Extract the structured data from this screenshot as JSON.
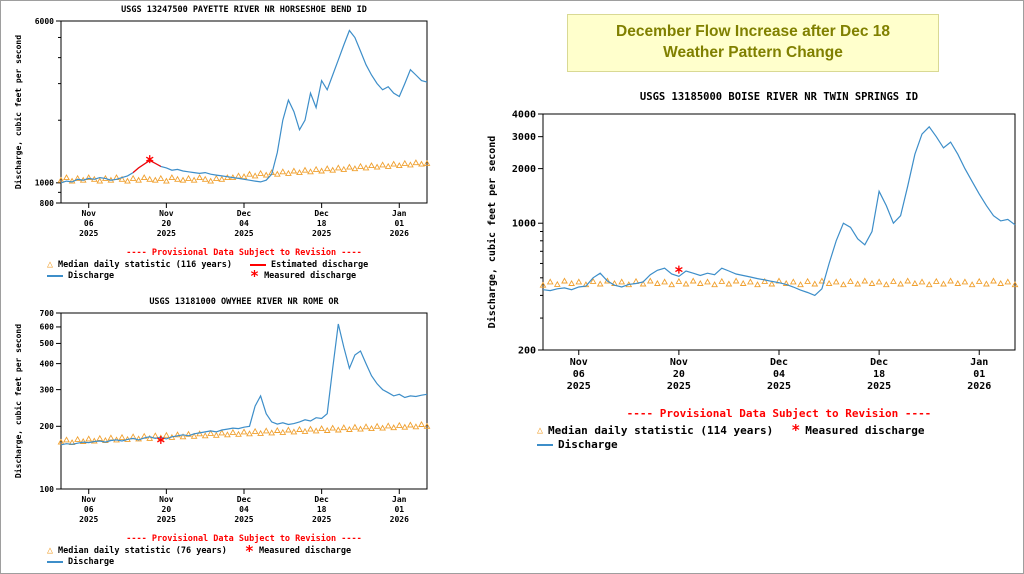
{
  "callout": {
    "line1": "December Flow Increase after Dec 18",
    "line2": "Weather Pattern Change",
    "bg_color": "#ffffcc",
    "text_color": "#808000"
  },
  "chart_data": [
    {
      "type": "line",
      "title": "USGS 13247500 PAYETTE RIVER NR HORSESHOE BEND ID",
      "ylabel": "Discharge, cubic feet per second",
      "yscale": "log",
      "ylim": [
        800,
        6000
      ],
      "yticks": [
        800,
        1000,
        6000
      ],
      "yticks_minor": [
        900,
        2000,
        3000,
        4000,
        5000
      ],
      "x_range": [
        0,
        66
      ],
      "xticks": [
        {
          "x": 5,
          "lines": [
            "Nov",
            "06",
            "2025"
          ]
        },
        {
          "x": 19,
          "lines": [
            "Nov",
            "20",
            "2025"
          ]
        },
        {
          "x": 33,
          "lines": [
            "Dec",
            "04",
            "2025"
          ]
        },
        {
          "x": 47,
          "lines": [
            "Dec",
            "18",
            "2025"
          ]
        },
        {
          "x": 61,
          "lines": [
            "Jan",
            "01",
            "2026"
          ]
        }
      ],
      "provisional": "---- Provisional Data Subject to Revision ----",
      "legend_cols": 2,
      "legend": [
        {
          "marker": "triangle",
          "color": "#f0a02f",
          "label": "Median daily statistic (116 years)"
        },
        {
          "marker": "line",
          "color": "#ff0000",
          "label": "Estimated discharge"
        },
        {
          "marker": "line",
          "color": "#3d8ec9",
          "label": "Discharge"
        },
        {
          "marker": "asterisk",
          "color": "#ff0000",
          "label": "Measured discharge"
        }
      ],
      "layout": {
        "margins": {
          "l": 52,
          "r": 6,
          "t": 6,
          "b": 44
        },
        "font": 8,
        "ylabel_x": 12
      },
      "series": [
        {
          "name": "Median daily statistic (116 years)",
          "style": "triangles",
          "color": "#f0a02f",
          "values": [
            1030,
            1060,
            1020,
            1050,
            1030,
            1060,
            1040,
            1020,
            1050,
            1030,
            1060,
            1040,
            1020,
            1050,
            1030,
            1060,
            1040,
            1030,
            1050,
            1020,
            1060,
            1040,
            1030,
            1050,
            1030,
            1060,
            1040,
            1020,
            1050,
            1040,
            1060,
            1060,
            1080,
            1070,
            1100,
            1080,
            1110,
            1090,
            1120,
            1100,
            1130,
            1110,
            1140,
            1120,
            1150,
            1130,
            1160,
            1140,
            1170,
            1150,
            1180,
            1160,
            1190,
            1170,
            1200,
            1180,
            1210,
            1190,
            1220,
            1200,
            1230,
            1210,
            1240,
            1220,
            1250,
            1230,
            1240
          ]
        },
        {
          "name": "Discharge",
          "style": "line",
          "color": "#3d8ec9",
          "values": [
            1000,
            1020,
            1010,
            1040,
            1030,
            1050,
            1040,
            1060,
            1050,
            1030,
            1040,
            1060,
            1080,
            1120,
            1180,
            1230,
            1280,
            1240,
            1200,
            1180,
            1150,
            1160,
            1140,
            1130,
            1120,
            1110,
            1120,
            1100,
            1090,
            1080,
            1070,
            1060,
            1050,
            1040,
            1030,
            1020,
            1010,
            1030,
            1100,
            1400,
            2000,
            2500,
            2200,
            1800,
            2000,
            2700,
            2300,
            3100,
            2800,
            3300,
            3900,
            4600,
            5400,
            5000,
            4300,
            3700,
            3300,
            3000,
            2800,
            2900,
            2700,
            2600,
            3000,
            3500,
            3300,
            3100,
            3050
          ]
        },
        {
          "name": "Estimated discharge",
          "style": "line",
          "color": "#ff0000",
          "x_start": 13,
          "values": [
            1120,
            1180,
            1230,
            1280,
            1240,
            1200
          ]
        },
        {
          "name": "Measured discharge",
          "style": "asterisk",
          "color": "#ff0000",
          "points": [
            {
              "x": 16,
              "y": 1300
            }
          ]
        }
      ]
    },
    {
      "type": "line",
      "title": "USGS 13181000 OWYHEE RIVER NR ROME OR",
      "ylabel": "Discharge, cubic feet per second",
      "yscale": "log",
      "ylim": [
        100,
        700
      ],
      "yticks": [
        100,
        200,
        300,
        400,
        500,
        600,
        700
      ],
      "yticks_minor": [],
      "x_range": [
        0,
        66
      ],
      "xticks": [
        {
          "x": 5,
          "lines": [
            "Nov",
            "06",
            "2025"
          ]
        },
        {
          "x": 19,
          "lines": [
            "Nov",
            "20",
            "2025"
          ]
        },
        {
          "x": 33,
          "lines": [
            "Dec",
            "04",
            "2025"
          ]
        },
        {
          "x": 47,
          "lines": [
            "Dec",
            "18",
            "2025"
          ]
        },
        {
          "x": 61,
          "lines": [
            "Jan",
            "01",
            "2026"
          ]
        }
      ],
      "provisional": "---- Provisional Data Subject to Revision ----",
      "legend_cols": 2,
      "legend": [
        {
          "marker": "triangle",
          "color": "#f0a02f",
          "label": "Median daily statistic (76 years)"
        },
        {
          "marker": "asterisk",
          "color": "#ff0000",
          "label": "Measured discharge"
        },
        {
          "marker": "line",
          "color": "#3d8ec9",
          "label": "Discharge"
        }
      ],
      "layout": {
        "margins": {
          "l": 52,
          "r": 6,
          "t": 6,
          "b": 44
        },
        "font": 8,
        "ylabel_x": 12
      },
      "series": [
        {
          "name": "Median daily statistic (76 years)",
          "style": "triangles",
          "color": "#f0a02f",
          "values": [
            168,
            172,
            167,
            173,
            169,
            174,
            170,
            175,
            171,
            176,
            172,
            177,
            173,
            178,
            174,
            179,
            175,
            180,
            176,
            181,
            177,
            182,
            178,
            183,
            179,
            184,
            180,
            185,
            181,
            186,
            182,
            187,
            183,
            188,
            184,
            189,
            185,
            190,
            186,
            191,
            187,
            192,
            188,
            193,
            189,
            194,
            190,
            195,
            191,
            196,
            192,
            197,
            193,
            198,
            194,
            199,
            195,
            200,
            196,
            201,
            197,
            202,
            198,
            203,
            199,
            204,
            200
          ]
        },
        {
          "name": "Discharge",
          "style": "line",
          "color": "#3d8ec9",
          "values": [
            163,
            165,
            164,
            166,
            168,
            167,
            169,
            170,
            168,
            171,
            172,
            170,
            173,
            175,
            172,
            176,
            178,
            175,
            177,
            174,
            178,
            180,
            182,
            180,
            184,
            186,
            188,
            190,
            188,
            192,
            194,
            196,
            195,
            198,
            200,
            250,
            280,
            230,
            210,
            205,
            208,
            204,
            206,
            210,
            215,
            212,
            220,
            218,
            230,
            380,
            620,
            480,
            380,
            440,
            460,
            400,
            350,
            320,
            300,
            290,
            280,
            285,
            275,
            280,
            278,
            282,
            285
          ]
        },
        {
          "name": "Measured discharge",
          "style": "asterisk",
          "color": "#ff0000",
          "points": [
            {
              "x": 18,
              "y": 172
            }
          ]
        }
      ]
    },
    {
      "type": "line",
      "title": "USGS 13185000 BOISE RIVER NR TWIN SPRINGS ID",
      "ylabel": "Discharge, cubic feet per second",
      "yscale": "log",
      "ylim": [
        200,
        4000
      ],
      "yticks": [
        200,
        1000,
        2000,
        3000,
        4000
      ],
      "yticks_minor": [
        300,
        400,
        500,
        600,
        700,
        800,
        900
      ],
      "x_range": [
        0,
        66
      ],
      "xticks": [
        {
          "x": 5,
          "lines": [
            "Nov",
            "06",
            "2025"
          ]
        },
        {
          "x": 19,
          "lines": [
            "Nov",
            "20",
            "2025"
          ]
        },
        {
          "x": 33,
          "lines": [
            "Dec",
            "04",
            "2025"
          ]
        },
        {
          "x": 47,
          "lines": [
            "Dec",
            "18",
            "2025"
          ]
        },
        {
          "x": 61,
          "lines": [
            "Jan",
            "01",
            "2026"
          ]
        }
      ],
      "provisional": "---- Provisional Data Subject to Revision ----",
      "legend_cols": 2,
      "legend": [
        {
          "marker": "triangle",
          "color": "#f0a02f",
          "label": "Median daily statistic (114 years)"
        },
        {
          "marker": "asterisk",
          "color": "#ff0000",
          "label": "Measured discharge"
        },
        {
          "marker": "line",
          "color": "#3d8ec9",
          "label": "Discharge"
        }
      ],
      "layout": {
        "margins": {
          "l": 64,
          "r": 8,
          "t": 8,
          "b": 54
        },
        "font": 10,
        "ylabel_x": 16
      },
      "series": [
        {
          "name": "Median daily statistic (114 years)",
          "style": "triangles",
          "color": "#f0a02f",
          "values": [
            455,
            475,
            460,
            480,
            465,
            475,
            458,
            478,
            462,
            480,
            465,
            475,
            458,
            478,
            462,
            480,
            465,
            475,
            458,
            478,
            462,
            480,
            465,
            475,
            458,
            478,
            462,
            480,
            465,
            475,
            458,
            478,
            462,
            480,
            465,
            475,
            458,
            478,
            462,
            480,
            465,
            475,
            458,
            478,
            462,
            480,
            465,
            475,
            458,
            478,
            462,
            480,
            465,
            475,
            458,
            478,
            462,
            480,
            465,
            475,
            458,
            478,
            462,
            480,
            465,
            475,
            458
          ]
        },
        {
          "name": "Discharge",
          "style": "line",
          "color": "#3d8ec9",
          "values": [
            430,
            425,
            435,
            440,
            430,
            445,
            450,
            500,
            530,
            480,
            455,
            445,
            460,
            465,
            475,
            520,
            550,
            565,
            525,
            510,
            545,
            530,
            515,
            530,
            520,
            565,
            545,
            525,
            515,
            505,
            495,
            487,
            478,
            470,
            460,
            445,
            428,
            415,
            400,
            435,
            600,
            800,
            1000,
            950,
            820,
            760,
            900,
            1500,
            1250,
            1000,
            1100,
            1600,
            2400,
            3100,
            3400,
            3000,
            2600,
            2800,
            2400,
            2000,
            1700,
            1450,
            1250,
            1100,
            1030,
            1050,
            980
          ]
        },
        {
          "name": "Measured discharge",
          "style": "asterisk",
          "color": "#ff0000",
          "points": [
            {
              "x": 19,
              "y": 555
            }
          ]
        }
      ]
    }
  ]
}
